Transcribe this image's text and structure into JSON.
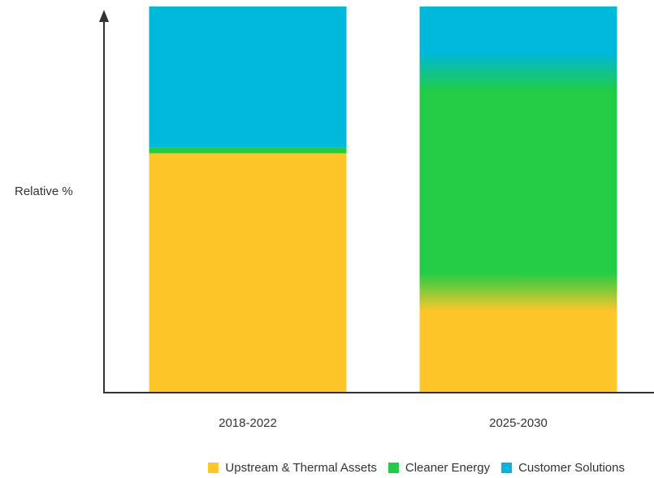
{
  "chart_data": {
    "type": "bar",
    "stacked": true,
    "title": "",
    "xlabel": "",
    "ylabel": "Relative %",
    "ylim": [
      0,
      100
    ],
    "grid": false,
    "legend_position": "bottom-right",
    "categories": [
      "2018-2022",
      "2025-2030"
    ],
    "series": [
      {
        "name": "Upstream & Thermal Assets",
        "color": "#FFC629",
        "values": [
          62,
          26
        ]
      },
      {
        "name": "Cleaner Energy",
        "color": "#22CC44",
        "values": [
          1.5,
          57
        ]
      },
      {
        "name": "Customer Solutions",
        "color": "#00B8D9",
        "values": [
          36.5,
          17
        ]
      }
    ],
    "blended_transitions": [
      false,
      true
    ]
  }
}
